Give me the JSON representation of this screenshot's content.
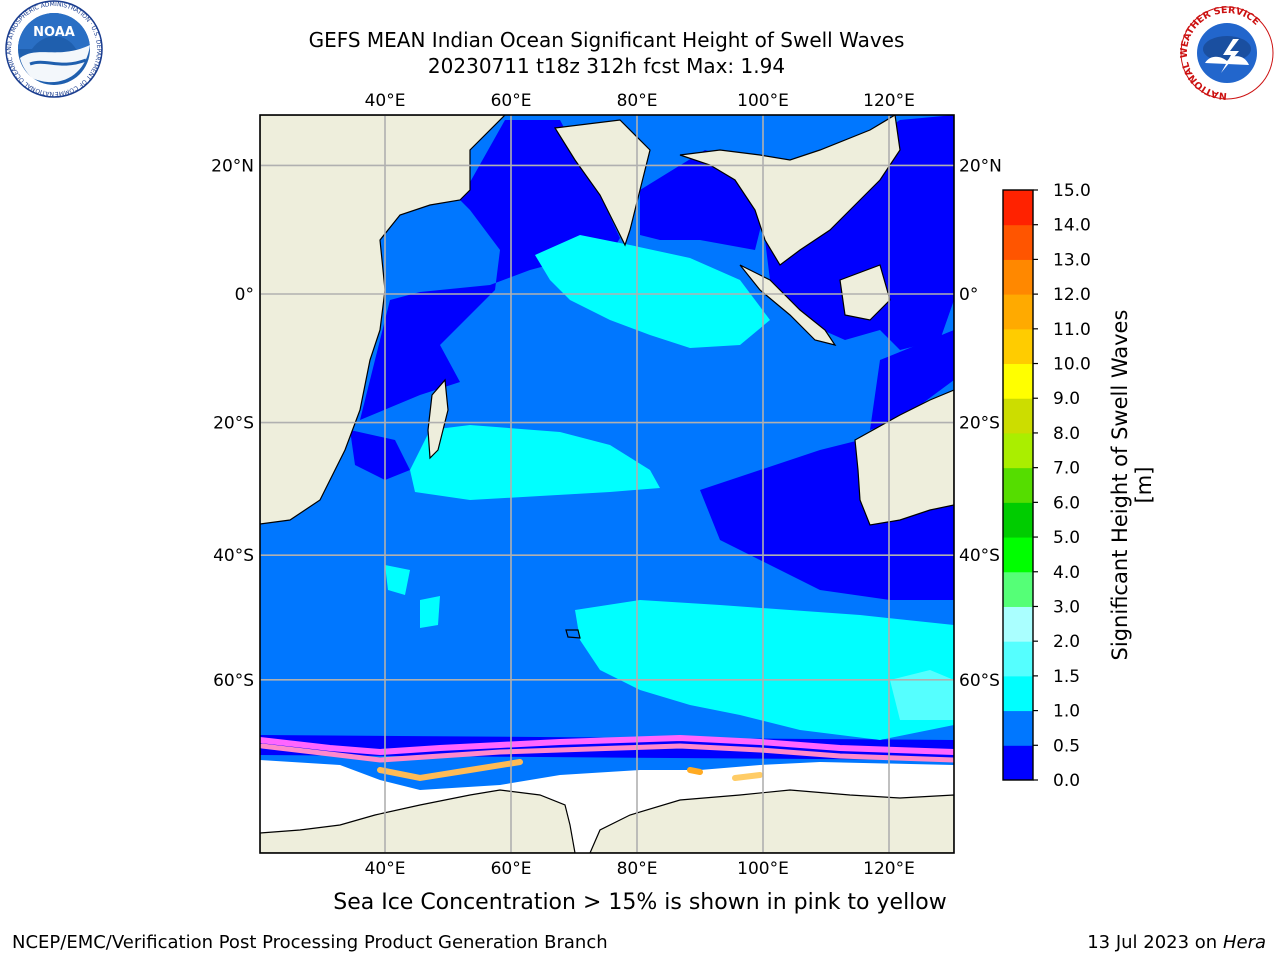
{
  "title": {
    "line1": "GEFS MEAN Indian Ocean Significant Height of Swell Waves",
    "line2": "20230711 t18z 312h fcst   Max: 1.94"
  },
  "map": {
    "projection": "lon/lat",
    "extent": {
      "lon_min": 20,
      "lon_max": 130,
      "lat_min": -88,
      "lat_max": 28
    },
    "lon_ticks": [
      {
        "label": "40°E"
      },
      {
        "label": "60°E"
      },
      {
        "label": "80°E"
      },
      {
        "label": "100°E"
      },
      {
        "label": "120°E"
      }
    ],
    "lat_ticks": [
      {
        "label": "20°N"
      },
      {
        "label": "0°"
      },
      {
        "label": "20°S"
      },
      {
        "label": "40°S"
      },
      {
        "label": "60°S"
      }
    ],
    "grid": true,
    "ocean_color": "#0077ff",
    "land_color": "#eeeedc"
  },
  "colorbar": {
    "label": "Significant Height of Swell Waves [m]",
    "ticks": [
      "0.0",
      "0.5",
      "1.0",
      "1.5",
      "2.0",
      "3.0",
      "4.0",
      "5.0",
      "6.0",
      "7.0",
      "8.0",
      "9.0",
      "10.0",
      "11.0",
      "12.0",
      "13.0",
      "14.0",
      "15.0"
    ],
    "colors": [
      "#0000ff",
      "#0077ff",
      "#00ffff",
      "#55ffff",
      "#aaffff",
      "#55ff77",
      "#00ff00",
      "#00cc00",
      "#55dd00",
      "#aaee00",
      "#ccdd00",
      "#ffff00",
      "#ffcc00",
      "#ffaa00",
      "#ff8800",
      "#ff5500",
      "#ff2200"
    ]
  },
  "caption": "Sea Ice Concentration > 15% is shown in pink to yellow",
  "footer": {
    "left": "NCEP/EMC/Verification Post Processing Product Generation Branch",
    "right_date": "13 Jul 2023 on ",
    "right_host": "Hera"
  },
  "logos": {
    "noaa": "NOAA",
    "noaa_ring": "NATIONAL OCEANIC AND ATMOSPHERIC ADMINISTRATION · U.S. DEPARTMENT OF COMMERCE",
    "nws_ring": "NATIONAL WEATHER SERVICE"
  }
}
